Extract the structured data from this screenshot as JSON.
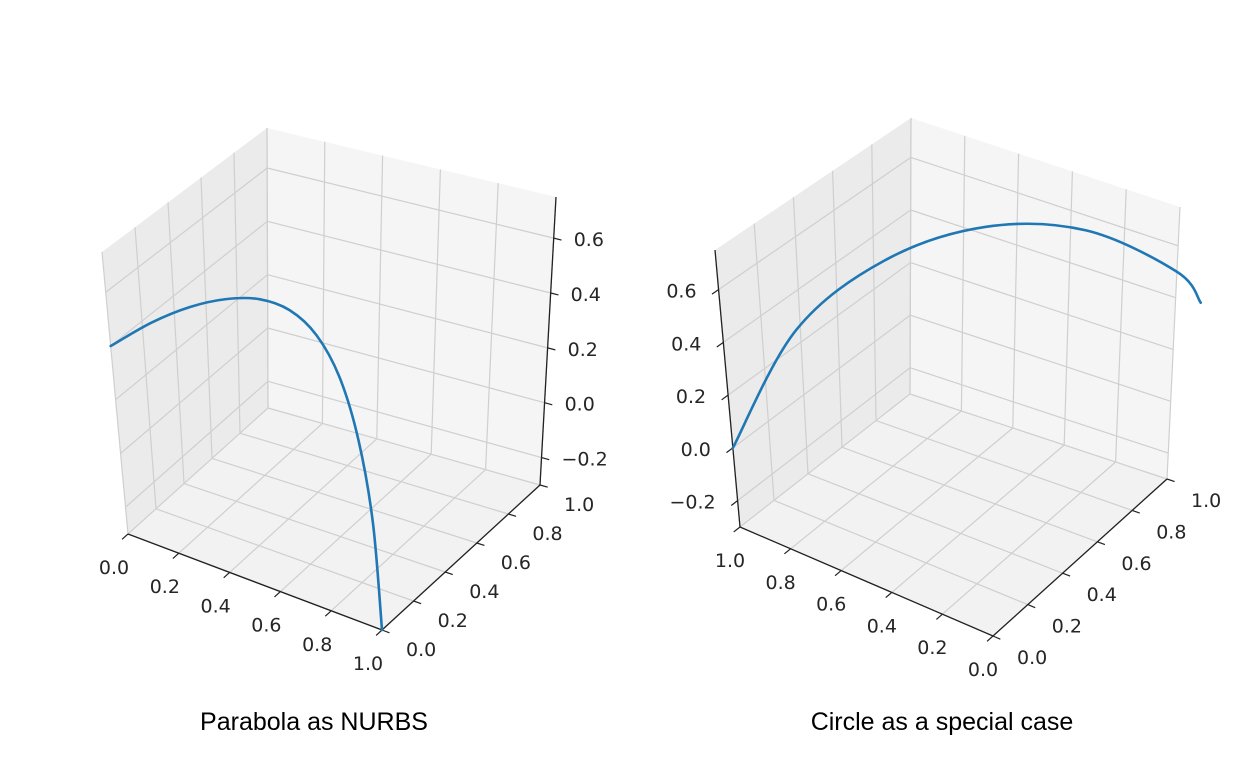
{
  "chart_data": [
    {
      "type": "line",
      "caption": "Parabola as NURBS",
      "xlabel": "",
      "ylabel": "",
      "zlabel": "",
      "grid": true,
      "x_ticks": [
        "0.0",
        "0.2",
        "0.4",
        "0.6",
        "0.8",
        "1.0"
      ],
      "y_ticks": [
        "0.0",
        "0.2",
        "0.4",
        "0.6",
        "0.8",
        "1.0"
      ],
      "z_ticks": [
        "−0.2",
        "0.0",
        "0.2",
        "0.4",
        "0.6"
      ],
      "xlim": [
        0,
        1
      ],
      "ylim": [
        0,
        1
      ],
      "zlim": [
        -0.3,
        0.75
      ],
      "series": [
        {
          "color": "#1f77b4",
          "points": [
            {
              "x": 0.0,
              "y": 0.0,
              "z": 0.4
            },
            {
              "x": 0.1,
              "y": 0.09,
              "z": 0.47
            },
            {
              "x": 0.2,
              "y": 0.16,
              "z": 0.52
            },
            {
              "x": 0.3,
              "y": 0.21,
              "z": 0.55
            },
            {
              "x": 0.4,
              "y": 0.24,
              "z": 0.56
            },
            {
              "x": 0.5,
              "y": 0.25,
              "z": 0.54
            },
            {
              "x": 0.6,
              "y": 0.24,
              "z": 0.48
            },
            {
              "x": 0.7,
              "y": 0.21,
              "z": 0.37
            },
            {
              "x": 0.8,
              "y": 0.16,
              "z": 0.2
            },
            {
              "x": 0.9,
              "y": 0.09,
              "z": -0.02
            },
            {
              "x": 1.0,
              "y": 0.0,
              "z": -0.3
            }
          ]
        }
      ]
    },
    {
      "type": "line",
      "caption": "Circle as a special case",
      "xlabel": "",
      "ylabel": "",
      "zlabel": "",
      "grid": true,
      "x_ticks": [
        "0.0",
        "0.2",
        "0.4",
        "0.6",
        "0.8",
        "1.0"
      ],
      "y_ticks": [
        "0.0",
        "0.2",
        "0.4",
        "0.6",
        "0.8",
        "1.0"
      ],
      "z_ticks": [
        "−0.2",
        "0.0",
        "0.2",
        "0.4",
        "0.6"
      ],
      "xlim": [
        0,
        1
      ],
      "ylim": [
        0,
        1
      ],
      "zlim": [
        -0.3,
        0.75
      ],
      "series": [
        {
          "color": "#1f77b4",
          "points": [
            {
              "x": 1.0,
              "y": 0.0,
              "z": 0.0
            },
            {
              "x": 0.95,
              "y": 0.31,
              "z": 0.31
            },
            {
              "x": 0.81,
              "y": 0.59,
              "z": 0.48
            },
            {
              "x": 0.59,
              "y": 0.81,
              "z": 0.57
            },
            {
              "x": 0.31,
              "y": 0.95,
              "z": 0.58
            },
            {
              "x": 0.0,
              "y": 1.0,
              "z": 0.5
            },
            {
              "x": -0.1,
              "y": 0.99,
              "z": 0.42
            }
          ]
        }
      ]
    }
  ]
}
